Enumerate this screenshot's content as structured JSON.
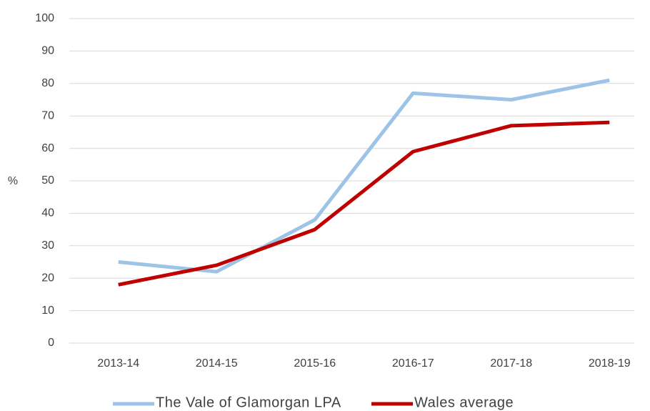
{
  "chart_data": {
    "type": "line",
    "y_label": "%",
    "categories": [
      "2013-14",
      "2014-15",
      "2015-16",
      "2016-17",
      "2017-18",
      "2018-19"
    ],
    "series": [
      {
        "name": "The Vale of Glamorgan LPA",
        "color": "#9dc3e6",
        "values": [
          25,
          22,
          38,
          77,
          75,
          81
        ]
      },
      {
        "name": "Wales average",
        "color": "#c00000",
        "values": [
          18,
          24,
          35,
          59,
          67,
          68
        ]
      }
    ],
    "ylim": [
      0,
      100
    ],
    "yticks": [
      0,
      10,
      20,
      30,
      40,
      50,
      60,
      70,
      80,
      90,
      100
    ],
    "grid": true,
    "legend": "bottom"
  }
}
